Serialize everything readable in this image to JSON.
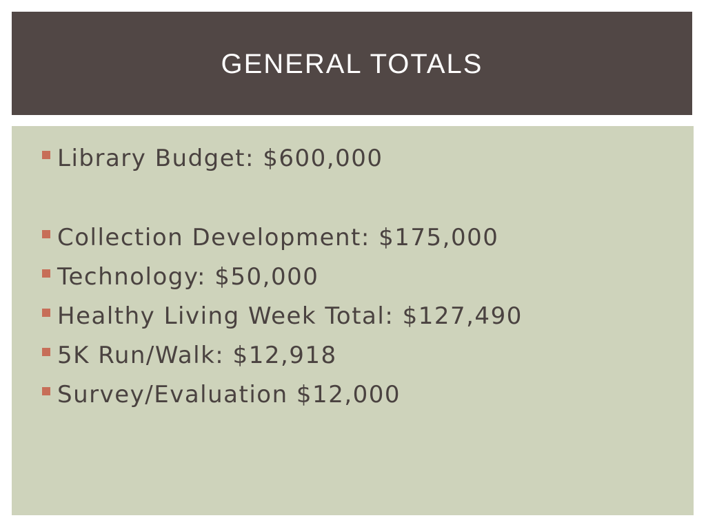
{
  "slide": {
    "title": "GENERAL TOTALS",
    "items": [
      {
        "label": "Library Budget: $600,000"
      },
      {
        "label": "Collection Development: $175,000"
      },
      {
        "label": "Technology: $50,000"
      },
      {
        "label": "Healthy Living Week Total: $127,490"
      },
      {
        "label": "5K Run/Walk: $12,918"
      },
      {
        "label": "Survey/Evaluation $12,000"
      }
    ]
  },
  "colors": {
    "title_background": "#514745",
    "content_background": "#ced3bb",
    "bullet": "#c76e58",
    "text": "#4a4240"
  }
}
